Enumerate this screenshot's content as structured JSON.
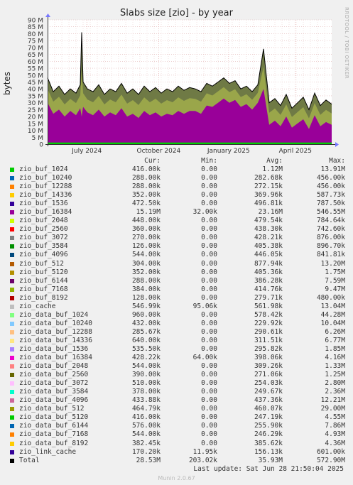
{
  "title": "Slabs size [zio] - by year",
  "ylabel": "bytes",
  "watermark": "RRDTOOL / TOBI OETIKER",
  "columns": {
    "cur": "Cur:",
    "min": "Min:",
    "avg": "Avg:",
    "max": "Max:"
  },
  "legend": [
    {
      "name": "zio_buf_1024",
      "color": "#00cc00",
      "cur": "416.00k",
      "min": "0.00",
      "avg": "1.12M",
      "max": "13.91M"
    },
    {
      "name": "zio_buf_10240",
      "color": "#0066b3",
      "cur": "288.00k",
      "min": "0.00",
      "avg": "282.68k",
      "max": "456.00k"
    },
    {
      "name": "zio_buf_12288",
      "color": "#ff8000",
      "cur": "288.00k",
      "min": "0.00",
      "avg": "272.15k",
      "max": "456.00k"
    },
    {
      "name": "zio_buf_14336",
      "color": "#ffcc00",
      "cur": "352.00k",
      "min": "0.00",
      "avg": "369.96k",
      "max": "587.73k"
    },
    {
      "name": "zio_buf_1536",
      "color": "#330099",
      "cur": "472.50k",
      "min": "0.00",
      "avg": "496.81k",
      "max": "787.50k"
    },
    {
      "name": "zio_buf_16384",
      "color": "#990099",
      "cur": "15.19M",
      "min": "32.00k",
      "avg": "23.16M",
      "max": "546.55M"
    },
    {
      "name": "zio_buf_2048",
      "color": "#ccff00",
      "cur": "448.00k",
      "min": "0.00",
      "avg": "479.54k",
      "max": "784.64k"
    },
    {
      "name": "zio_buf_2560",
      "color": "#ff0000",
      "cur": "360.00k",
      "min": "0.00",
      "avg": "438.30k",
      "max": "742.60k"
    },
    {
      "name": "zio_buf_3072",
      "color": "#808080",
      "cur": "270.00k",
      "min": "0.00",
      "avg": "428.21k",
      "max": "876.00k"
    },
    {
      "name": "zio_buf_3584",
      "color": "#008f00",
      "cur": "126.00k",
      "min": "0.00",
      "avg": "405.38k",
      "max": "896.70k"
    },
    {
      "name": "zio_buf_4096",
      "color": "#00487d",
      "cur": "544.00k",
      "min": "0.00",
      "avg": "446.05k",
      "max": "841.81k"
    },
    {
      "name": "zio_buf_512",
      "color": "#b35a00",
      "cur": "304.00k",
      "min": "0.00",
      "avg": "877.94k",
      "max": "13.20M"
    },
    {
      "name": "zio_buf_5120",
      "color": "#b38f00",
      "cur": "352.00k",
      "min": "0.00",
      "avg": "405.36k",
      "max": "1.75M"
    },
    {
      "name": "zio_buf_6144",
      "color": "#6b006b",
      "cur": "288.00k",
      "min": "0.00",
      "avg": "386.28k",
      "max": "7.59M"
    },
    {
      "name": "zio_buf_7168",
      "color": "#8fb300",
      "cur": "384.00k",
      "min": "0.00",
      "avg": "414.76k",
      "max": "9.47M"
    },
    {
      "name": "zio_buf_8192",
      "color": "#b30000",
      "cur": "128.00k",
      "min": "0.00",
      "avg": "279.71k",
      "max": "480.00k"
    },
    {
      "name": "zio_cache",
      "color": "#bebebe",
      "cur": "546.99k",
      "min": "95.06k",
      "avg": "561.98k",
      "max": "13.04M"
    },
    {
      "name": "zio_data_buf_1024",
      "color": "#80ff80",
      "cur": "960.00k",
      "min": "0.00",
      "avg": "578.42k",
      "max": "44.28M"
    },
    {
      "name": "zio_data_buf_10240",
      "color": "#80c9ff",
      "cur": "432.00k",
      "min": "0.00",
      "avg": "229.92k",
      "max": "10.04M"
    },
    {
      "name": "zio_data_buf_12288",
      "color": "#ffc080",
      "cur": "285.67k",
      "min": "0.00",
      "avg": "290.61k",
      "max": "6.26M"
    },
    {
      "name": "zio_data_buf_14336",
      "color": "#ffe680",
      "cur": "640.00k",
      "min": "0.00",
      "avg": "311.51k",
      "max": "6.77M"
    },
    {
      "name": "zio_data_buf_1536",
      "color": "#aa80ff",
      "cur": "535.50k",
      "min": "0.00",
      "avg": "295.82k",
      "max": "1.85M"
    },
    {
      "name": "zio_data_buf_16384",
      "color": "#ee00cc",
      "cur": "428.22k",
      "min": "64.00k",
      "avg": "398.06k",
      "max": "4.16M"
    },
    {
      "name": "zio_data_buf_2048",
      "color": "#ff8080",
      "cur": "544.00k",
      "min": "0.00",
      "avg": "309.26k",
      "max": "1.33M"
    },
    {
      "name": "zio_data_buf_2560",
      "color": "#666600",
      "cur": "390.00k",
      "min": "0.00",
      "avg": "271.06k",
      "max": "1.25M"
    },
    {
      "name": "zio_data_buf_3072",
      "color": "#ffbfff",
      "cur": "510.00k",
      "min": "0.00",
      "avg": "254.03k",
      "max": "2.80M"
    },
    {
      "name": "zio_data_buf_3584",
      "color": "#00ffcc",
      "cur": "378.00k",
      "min": "0.00",
      "avg": "249.67k",
      "max": "2.36M"
    },
    {
      "name": "zio_data_buf_4096",
      "color": "#cc6699",
      "cur": "433.88k",
      "min": "0.00",
      "avg": "437.36k",
      "max": "12.21M"
    },
    {
      "name": "zio_data_buf_512",
      "color": "#999900",
      "cur": "464.79k",
      "min": "0.00",
      "avg": "460.07k",
      "max": "29.00M"
    },
    {
      "name": "zio_data_buf_5120",
      "color": "#00cc00",
      "cur": "416.00k",
      "min": "0.00",
      "avg": "247.19k",
      "max": "4.55M"
    },
    {
      "name": "zio_data_buf_6144",
      "color": "#0066b3",
      "cur": "576.00k",
      "min": "0.00",
      "avg": "255.90k",
      "max": "7.86M"
    },
    {
      "name": "zio_data_buf_7168",
      "color": "#ff8000",
      "cur": "544.00k",
      "min": "0.00",
      "avg": "246.29k",
      "max": "4.93M"
    },
    {
      "name": "zio_data_buf_8192",
      "color": "#ffcc00",
      "cur": "382.45k",
      "min": "0.00",
      "avg": "385.62k",
      "max": "4.36M"
    },
    {
      "name": "zio_link_cache",
      "color": "#330099",
      "cur": "170.20k",
      "min": "11.95k",
      "avg": "156.13k",
      "max": "601.00k"
    },
    {
      "name": "Total",
      "color": "#000000",
      "cur": "28.53M",
      "min": "203.02k",
      "avg": "35.93M",
      "max": "572.90M"
    }
  ],
  "last_update": "Last update: Sat Jun 28 21:50:04 2025",
  "version": "Munin 2.0.67",
  "chart_data": {
    "type": "area",
    "title": "Slabs size [zio] - by year",
    "ylabel": "bytes",
    "xlabel": "",
    "y_ticks": [
      "0",
      "5 M",
      "10 M",
      "15 M",
      "20 M",
      "25 M",
      "30 M",
      "35 M",
      "40 M",
      "45 M",
      "50 M",
      "55 M",
      "60 M",
      "65 M",
      "70 M",
      "75 M",
      "80 M",
      "85 M",
      "90 M"
    ],
    "ylim": [
      0,
      90
    ],
    "y_unit": "M bytes",
    "x_ticks": [
      "July 2024",
      "October 2024",
      "January 2025",
      "April 2025"
    ],
    "x_tick_positions": [
      0.138,
      0.391,
      0.637,
      0.872
    ],
    "grid": true,
    "series": [
      {
        "name": "Total",
        "color": "#000000",
        "x": [
          0.0,
          0.02,
          0.04,
          0.06,
          0.08,
          0.1,
          0.115,
          0.12,
          0.125,
          0.14,
          0.16,
          0.18,
          0.2,
          0.22,
          0.24,
          0.26,
          0.28,
          0.3,
          0.32,
          0.34,
          0.36,
          0.38,
          0.4,
          0.42,
          0.44,
          0.46,
          0.48,
          0.5,
          0.52,
          0.54,
          0.56,
          0.58,
          0.6,
          0.62,
          0.64,
          0.66,
          0.68,
          0.7,
          0.72,
          0.74,
          0.76,
          0.78,
          0.8,
          0.82,
          0.84,
          0.86,
          0.88,
          0.9,
          0.92,
          0.94,
          0.96,
          0.98,
          1.0
        ],
        "values": [
          48,
          38,
          42,
          36,
          40,
          37,
          43,
          81,
          45,
          40,
          38,
          43,
          36,
          40,
          38,
          44,
          37,
          40,
          36,
          42,
          38,
          41,
          37,
          40,
          38,
          42,
          39,
          41,
          40,
          38,
          44,
          42,
          45,
          48,
          44,
          46,
          40,
          42,
          38,
          43,
          69,
          30,
          33,
          28,
          36,
          26,
          30,
          34,
          25,
          37,
          28,
          32,
          29
        ]
      },
      {
        "name": "zio_buf_16384",
        "color": "#990099",
        "x": [
          0.0,
          0.02,
          0.04,
          0.06,
          0.08,
          0.1,
          0.115,
          0.12,
          0.125,
          0.14,
          0.16,
          0.18,
          0.2,
          0.22,
          0.24,
          0.26,
          0.28,
          0.3,
          0.32,
          0.34,
          0.36,
          0.38,
          0.4,
          0.42,
          0.44,
          0.46,
          0.48,
          0.5,
          0.52,
          0.54,
          0.56,
          0.58,
          0.6,
          0.62,
          0.64,
          0.66,
          0.68,
          0.7,
          0.72,
          0.74,
          0.76,
          0.78,
          0.8,
          0.82,
          0.84,
          0.86,
          0.88,
          0.9,
          0.92,
          0.94,
          0.96,
          0.98,
          1.0
        ],
        "values": [
          30,
          22,
          25,
          20,
          24,
          21,
          26,
          20,
          27,
          23,
          21,
          25,
          20,
          23,
          21,
          26,
          20,
          22,
          19,
          24,
          21,
          23,
          20,
          22,
          21,
          24,
          22,
          24,
          24,
          22,
          28,
          27,
          30,
          33,
          30,
          32,
          27,
          29,
          25,
          30,
          40,
          14,
          17,
          13,
          20,
          12,
          15,
          18,
          11,
          21,
          13,
          16,
          14
        ]
      }
    ]
  }
}
